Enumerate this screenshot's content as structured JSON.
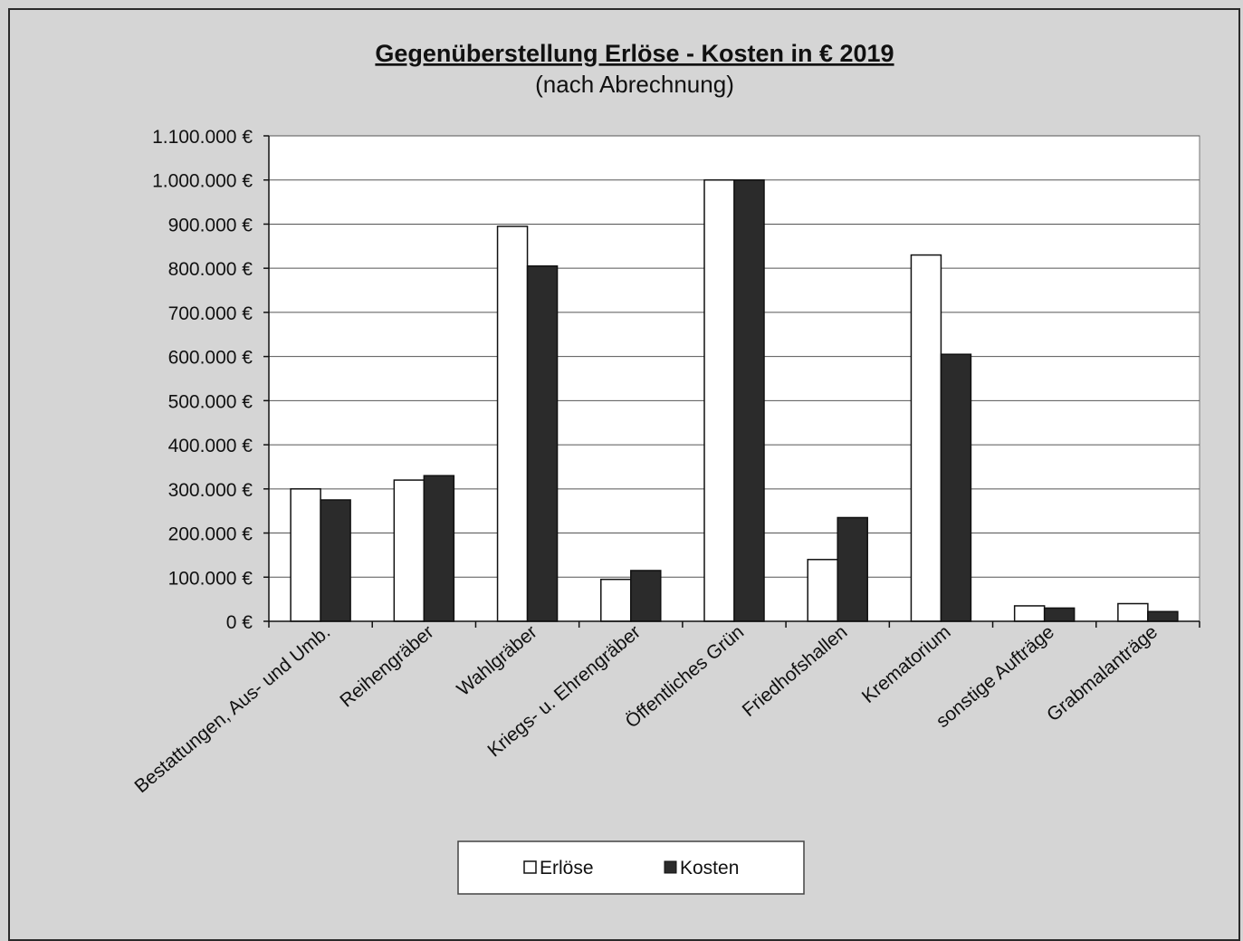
{
  "colors": {
    "background": "#d4d4d4",
    "plot_area": "#ffffff",
    "erloese_fill": "#ffffff",
    "kosten_fill": "#2b2b2b",
    "gridline": "#555555"
  },
  "chart_data": {
    "type": "bar",
    "title": "Gegenüberstellung Erlöse - Kosten in € 2019",
    "subtitle": "(nach Abrechnung)",
    "xlabel": "",
    "ylabel": "",
    "ylim": [
      0,
      1100000
    ],
    "grid": true,
    "legend_position": "bottom",
    "y_ticks": [
      "0 €",
      "100.000 €",
      "200.000 €",
      "300.000 €",
      "400.000 €",
      "500.000 €",
      "600.000 €",
      "700.000 €",
      "800.000 €",
      "900.000 €",
      "1.000.000 €",
      "1.100.000 €"
    ],
    "categories": [
      "Bestattungen, Aus- und Umb.",
      "Reihengräber",
      "Wahlgräber",
      "Kriegs- u. Ehrengräber",
      "Öffentliches Grün",
      "Friedhofshallen",
      "Krematorium",
      "sonstige Aufträge",
      "Grabmalanträge"
    ],
    "series": [
      {
        "name": "Erlöse",
        "color": "#ffffff",
        "values": [
          300000,
          320000,
          895000,
          95000,
          1000000,
          140000,
          830000,
          35000,
          40000
        ]
      },
      {
        "name": "Kosten",
        "color": "#2b2b2b",
        "values": [
          275000,
          330000,
          805000,
          115000,
          1000000,
          235000,
          605000,
          30000,
          22000
        ]
      }
    ]
  }
}
